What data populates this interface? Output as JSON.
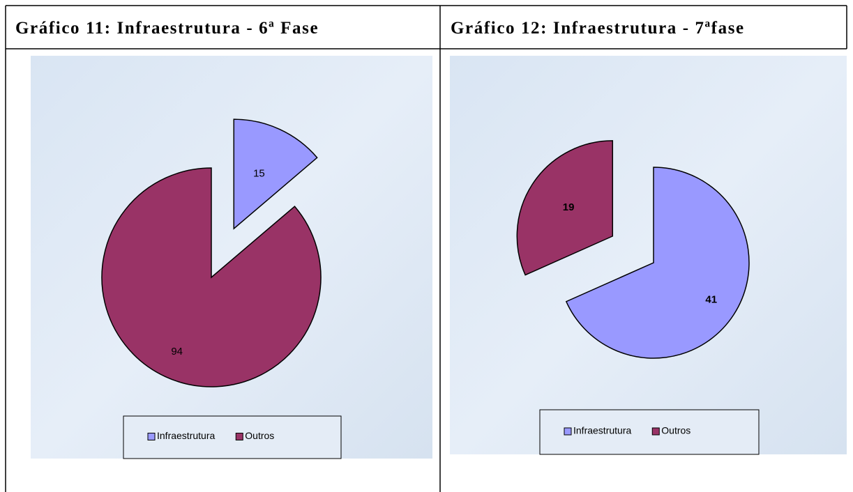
{
  "chart_data": [
    {
      "type": "pie",
      "title": "Gráfico 11: Infraestrutura - 6ª Fase",
      "categories": [
        "Infraestrutura",
        "Outros"
      ],
      "values": [
        15,
        94
      ],
      "colors": [
        "#9999ff",
        "#993366"
      ],
      "legend": "bottom"
    },
    {
      "type": "pie",
      "title": "Gráfico 12: Infraestrutura - 7ªfase",
      "categories": [
        "Infraestrutura",
        "Outros"
      ],
      "values": [
        41,
        19
      ],
      "colors": [
        "#9999ff",
        "#993366"
      ],
      "legend": "bottom"
    }
  ]
}
